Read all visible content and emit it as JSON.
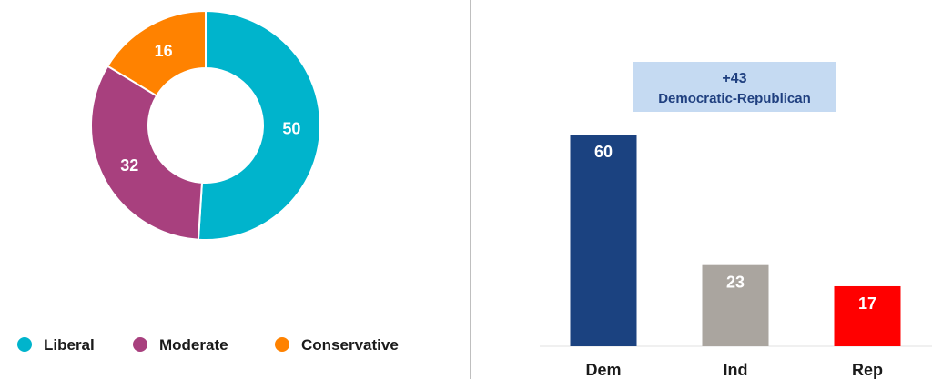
{
  "chart_data": [
    {
      "type": "pie",
      "variant": "donut",
      "categories": [
        "Liberal",
        "Moderate",
        "Conservative"
      ],
      "values": [
        50,
        32,
        16
      ],
      "colors": [
        "#00B4CC",
        "#A8407E",
        "#FF8200"
      ],
      "legend": "bottom"
    },
    {
      "type": "bar",
      "categories": [
        "Dem",
        "Ind",
        "Rep"
      ],
      "values": [
        60,
        23,
        17
      ],
      "colors": [
        "#1B4280",
        "#AAA59F",
        "#FF0000"
      ],
      "label_colors": [
        "#FFFFFF",
        "#FFFFFF",
        "#FFFFFF"
      ],
      "annotation": {
        "lines": [
          "+43",
          "Democratic-Republican"
        ],
        "fill": "#C5DAF2",
        "text_color": "#1F3F7F"
      }
    }
  ],
  "divider_color": "#AAAAAA"
}
